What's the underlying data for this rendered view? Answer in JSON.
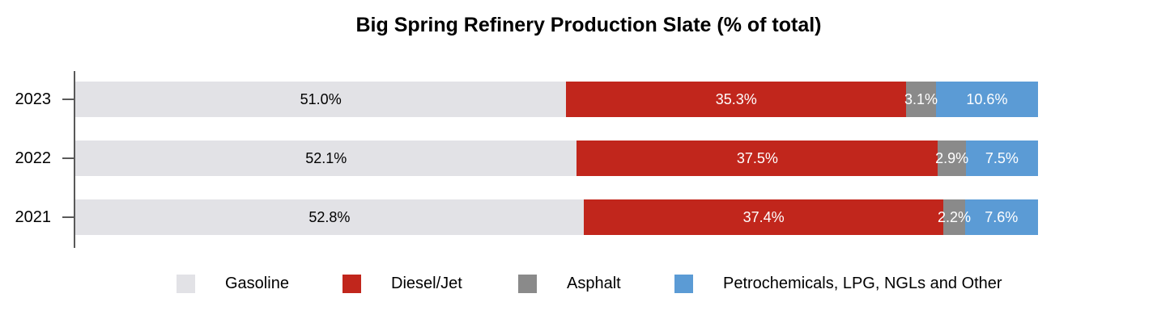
{
  "title": "Big Spring Refinery Production Slate (% of total)",
  "chart_data": {
    "type": "bar",
    "variant": "horizontal-stacked",
    "title": "Big Spring Refinery Production Slate (% of total)",
    "categories": [
      "2023",
      "2022",
      "2021"
    ],
    "series": [
      {
        "name": "Gasoline",
        "color": "#e2e2e6",
        "label_color": "#000000",
        "values": [
          51.0,
          52.1,
          52.8
        ],
        "labels": [
          "51.0%",
          "52.1%",
          "52.8%"
        ]
      },
      {
        "name": "Diesel/Jet",
        "color": "#c1261c",
        "label_color": "#ffffff",
        "values": [
          35.3,
          37.5,
          37.4
        ],
        "labels": [
          "35.3%",
          "37.5%",
          "37.4%"
        ]
      },
      {
        "name": "Asphalt",
        "color": "#8a8a8a",
        "label_color": "#ffffff",
        "values": [
          3.1,
          2.9,
          2.2
        ],
        "labels": [
          "3.1%",
          "2.9%",
          "2.2%"
        ]
      },
      {
        "name": "Petrochemicals, LPG, NGLs and Other",
        "color": "#5b9bd5",
        "label_color": "#ffffff",
        "values": [
          10.6,
          7.5,
          7.6
        ],
        "labels": [
          "10.6%",
          "7.5%",
          "7.6%"
        ]
      }
    ],
    "xlim": [
      0,
      100
    ],
    "value_unit": "%",
    "grid": false,
    "legend_position": "bottom",
    "axis_color": "#595959",
    "background_color": "#ffffff"
  }
}
